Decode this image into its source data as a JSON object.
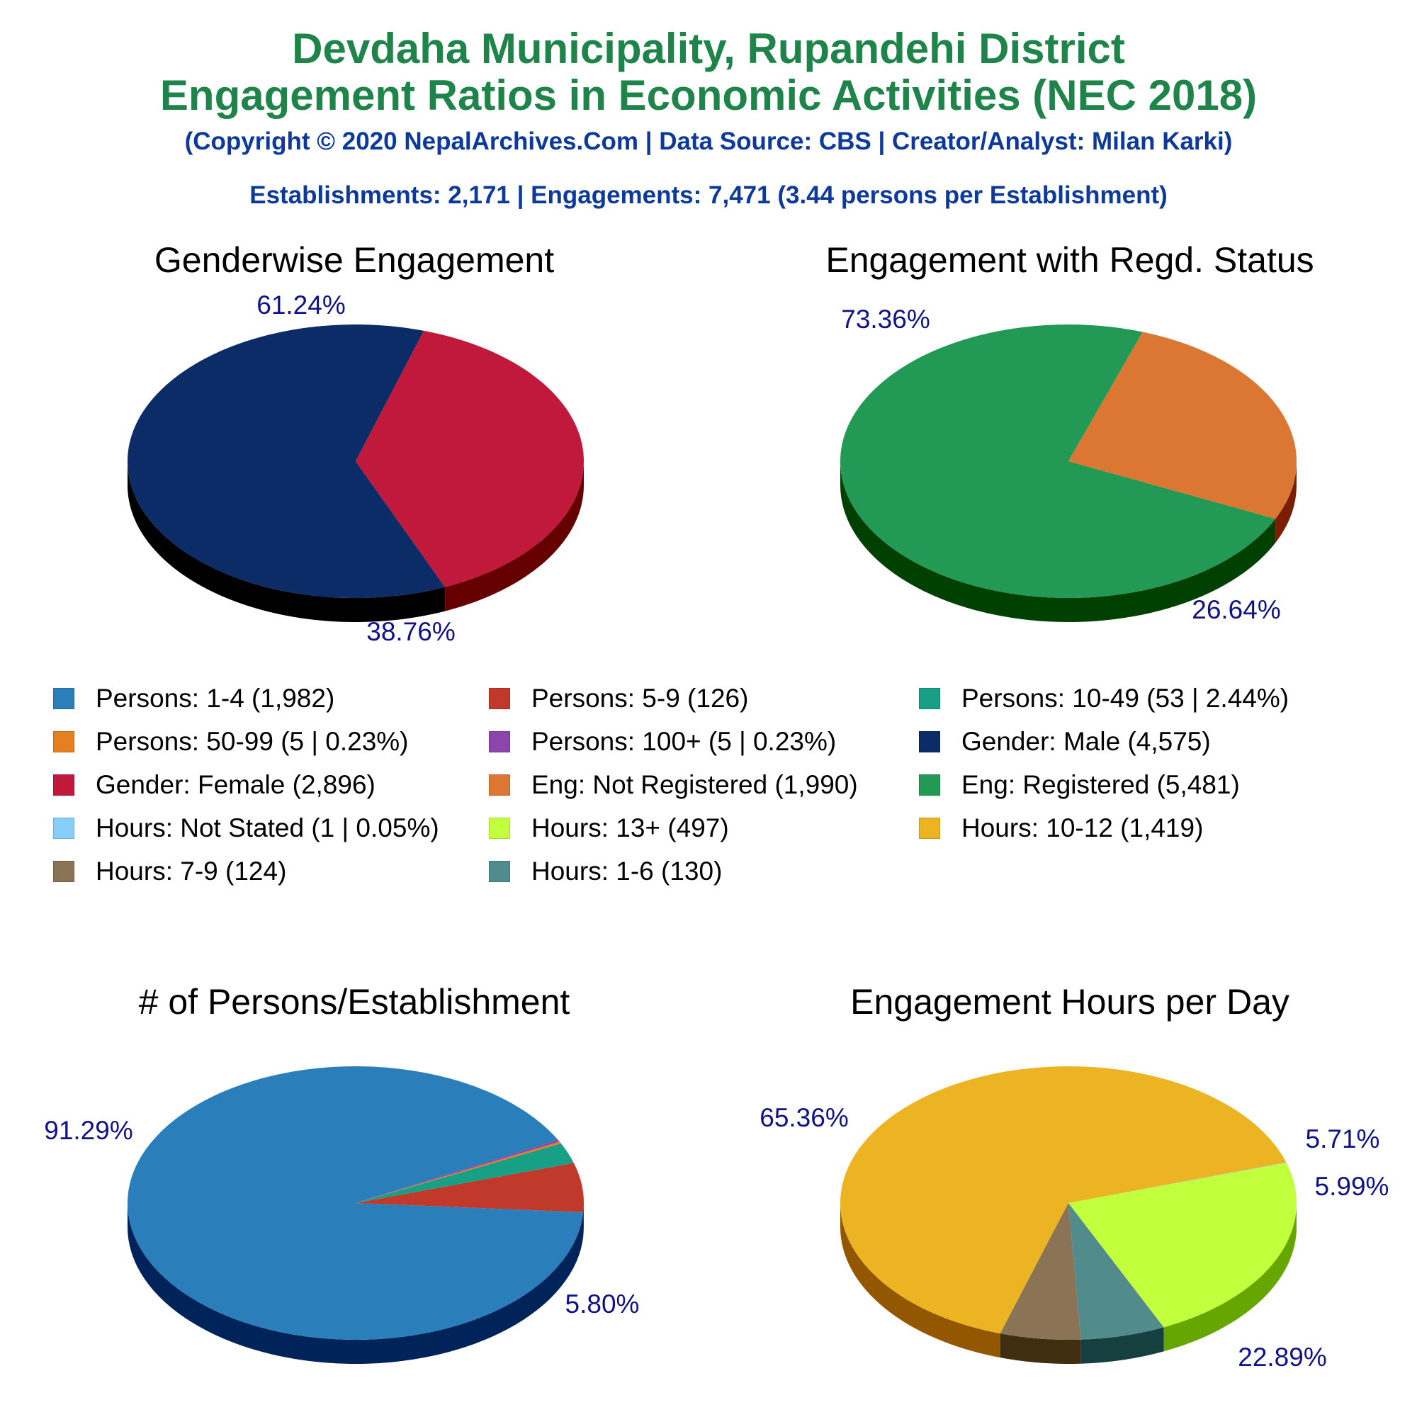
{
  "header": {
    "title_line1": "Devdaha Municipality, Rupandehi District",
    "title_line2": "Engagement Ratios in Economic Activities (NEC 2018)",
    "copyright": "(Copyright © 2020 NepalArchives.Com | Data Source: CBS | Creator/Analyst: Milan Karki)",
    "summary": "Establishments: 2,171 | Engagements: 7,471 (3.44 persons per Establishment)"
  },
  "legend": [
    {
      "label": "Persons: 1-4 (1,982)",
      "color": "#2a7fbb"
    },
    {
      "label": "Persons: 5-9 (126)",
      "color": "#c0392b"
    },
    {
      "label": "Persons: 10-49 (53 | 2.44%)",
      "color": "#17a085"
    },
    {
      "label": "Persons: 50-99 (5 | 0.23%)",
      "color": "#e67e22"
    },
    {
      "label": "Persons: 100+ (5 | 0.23%)",
      "color": "#8e44ad"
    },
    {
      "label": "Gender: Male (4,575)",
      "color": "#0b2c66"
    },
    {
      "label": "Gender: Female (2,896)",
      "color": "#c0193b"
    },
    {
      "label": "Eng: Not Registered (1,990)",
      "color": "#dc7633"
    },
    {
      "label": "Eng: Registered (5,481)",
      "color": "#229954"
    },
    {
      "label": "Hours: Not Stated (1 | 0.05%)",
      "color": "#87cefa"
    },
    {
      "label": "Hours: 13+ (497)",
      "color": "#c2ff3c"
    },
    {
      "label": "Hours: 10-12 (1,419)",
      "color": "#ecb322"
    },
    {
      "label": "Hours: 7-9 (124)",
      "color": "#8b7355"
    },
    {
      "label": "Hours: 1-6 (130)",
      "color": "#528b8b"
    }
  ],
  "chart_data": [
    {
      "type": "pie",
      "title": "Genderwise Engagement",
      "slices": [
        {
          "name": "Gender: Male",
          "value": 4575,
          "label": "61.24%",
          "color": "#0b2c66",
          "side": "#000000"
        },
        {
          "name": "Gender: Female",
          "value": 2896,
          "label": "38.76%",
          "color": "#c0193b",
          "side": "#660000"
        }
      ]
    },
    {
      "type": "pie",
      "title": "Engagement with Regd. Status",
      "slices": [
        {
          "name": "Eng: Registered",
          "value": 5481,
          "label": "73.36%",
          "color": "#229954",
          "side": "#004000"
        },
        {
          "name": "Eng: Not Registered",
          "value": 1990,
          "label": "26.64%",
          "color": "#dc7633",
          "side": "#7a1e00"
        }
      ]
    },
    {
      "type": "pie",
      "title": "# of Persons/Establishment",
      "slices": [
        {
          "name": "Persons: 1-4",
          "value": 1982,
          "label": "91.29%",
          "color": "#2a7fbb",
          "side": "#00235a"
        },
        {
          "name": "Persons: 5-9",
          "value": 126,
          "label": "5.80%",
          "color": "#c0392b",
          "side": "#640000"
        },
        {
          "name": "Persons: 10-49",
          "value": 53,
          "label": "",
          "color": "#17a085",
          "side": "#004030"
        },
        {
          "name": "Persons: 50-99",
          "value": 5,
          "label": "",
          "color": "#e67e22",
          "side": "#7a3a00"
        },
        {
          "name": "Persons: 100+",
          "value": 5,
          "label": "",
          "color": "#8e44ad",
          "side": "#3a0a5a"
        }
      ]
    },
    {
      "type": "pie",
      "title": "Engagement Hours per Day",
      "slices": [
        {
          "name": "Hours: 10-12",
          "value": 1419,
          "label": "65.36%",
          "color": "#ecb322",
          "side": "#925700"
        },
        {
          "name": "Hours: 7-9",
          "value": 124,
          "label": "5.71%",
          "color": "#8b7355",
          "side": "#3f2e10"
        },
        {
          "name": "Hours: 1-6",
          "value": 130,
          "label": "5.99%",
          "color": "#528b8b",
          "side": "#16403f"
        },
        {
          "name": "Hours: 13+",
          "value": 497,
          "label": "22.89%",
          "color": "#c2ff3c",
          "side": "#66a600"
        },
        {
          "name": "Hours: Not Stated",
          "value": 1,
          "label": "",
          "color": "#87cefa",
          "side": "#336b99"
        }
      ]
    }
  ]
}
